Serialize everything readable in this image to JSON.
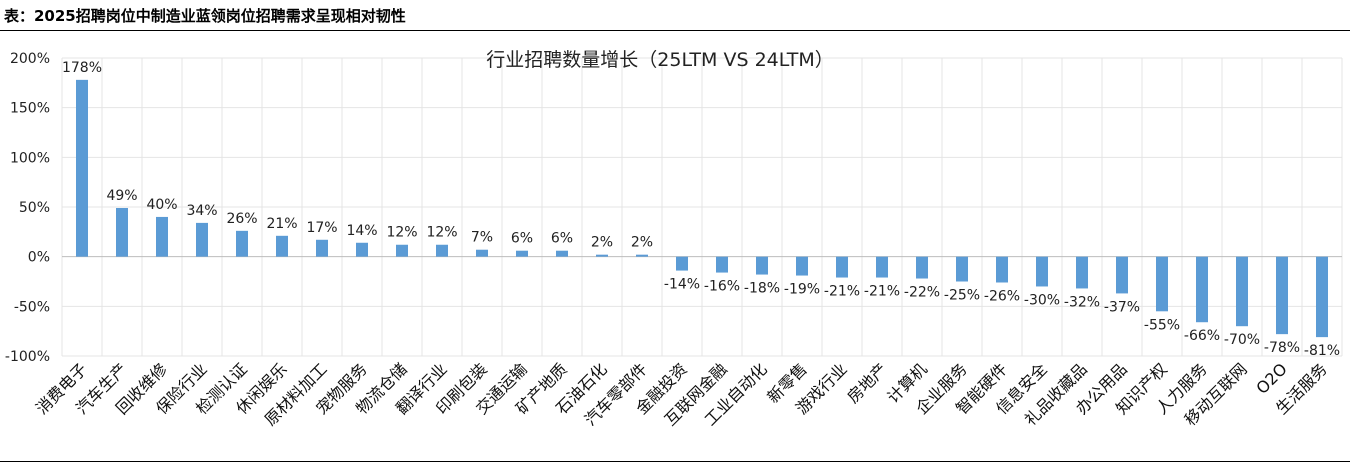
{
  "header": {
    "title": "表：2025招聘岗位中制造业蓝领岗位招聘需求呈现相对韧性"
  },
  "chart_data": {
    "type": "bar",
    "title": "行业招聘数量增长（25LTM VS 24LTM）",
    "xlabel": "",
    "ylabel": "",
    "ylim": [
      -100,
      200
    ],
    "yticks": [
      -100,
      -50,
      0,
      50,
      100,
      150,
      200
    ],
    "ytick_labels": [
      "-100%",
      "-50%",
      "0%",
      "50%",
      "100%",
      "150%",
      "200%"
    ],
    "grid": true,
    "legend": "none",
    "bar_color": "#5b9bd5",
    "categories": [
      "消费电子",
      "汽车生产",
      "回收维修",
      "保险行业",
      "检测认证",
      "休闲娱乐",
      "原材料加工",
      "宠物服务",
      "物流仓储",
      "翻译行业",
      "印刷包装",
      "交通运输",
      "矿产地质",
      "石油石化",
      "汽车零部件",
      "金融投资",
      "互联网金融",
      "工业自动化",
      "新零售",
      "游戏行业",
      "房地产",
      "计算机",
      "企业服务",
      "智能硬件",
      "信息安全",
      "礼品收藏品",
      "办公用品",
      "知识产权",
      "人力服务",
      "移动互联网",
      "O2O",
      "生活服务"
    ],
    "values": [
      178,
      49,
      40,
      34,
      26,
      21,
      17,
      14,
      12,
      12,
      7,
      6,
      6,
      2,
      2,
      -14,
      -16,
      -18,
      -19,
      -21,
      -21,
      -22,
      -25,
      -26,
      -30,
      -32,
      -37,
      -55,
      -66,
      -70,
      -78,
      -81
    ],
    "data_labels": [
      "178%",
      "49%",
      "40%",
      "34%",
      "26%",
      "21%",
      "17%",
      "14%",
      "12%",
      "12%",
      "7%",
      "6%",
      "6%",
      "2%",
      "2%",
      "-14%",
      "-16%",
      "-18%",
      "-19%",
      "-21%",
      "-21%",
      "-22%",
      "-25%",
      "-26%",
      "-30%",
      "-32%",
      "-37%",
      "-55%",
      "-66%",
      "-70%",
      "-78%",
      "-81%"
    ]
  }
}
